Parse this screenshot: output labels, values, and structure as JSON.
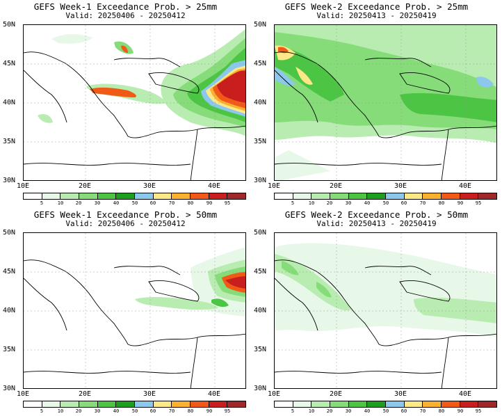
{
  "palette": [
    "#ffffff",
    "#e8f8e8",
    "#b8ecb0",
    "#86dc78",
    "#4cc444",
    "#1e9e1e",
    "#8cc8ec",
    "#fce888",
    "#fcb030",
    "#f05a16",
    "#c81e1e",
    "#a02828"
  ],
  "colorbar_labels": [
    "5",
    "10",
    "20",
    "30",
    "40",
    "50",
    "60",
    "70",
    "80",
    "90",
    "95"
  ],
  "lat_labels": [
    "50N",
    "45N",
    "40N",
    "35N",
    "30N"
  ],
  "lon_labels": [
    "10E",
    "20E",
    "30E",
    "40E"
  ],
  "panels": [
    {
      "title": "GEFS Week-1 Exceedance Prob. > 25mm",
      "valid": "Valid: 20250406 - 20250412"
    },
    {
      "title": "GEFS Week-2 Exceedance Prob. > 25mm",
      "valid": "Valid: 20250413 - 20250419"
    },
    {
      "title": "GEFS Week-1 Exceedance Prob. > 50mm",
      "valid": "Valid: 20250406 - 20250412"
    },
    {
      "title": "GEFS Week-2 Exceedance Prob. > 50mm",
      "valid": "Valid: 20250413 - 20250419"
    }
  ]
}
